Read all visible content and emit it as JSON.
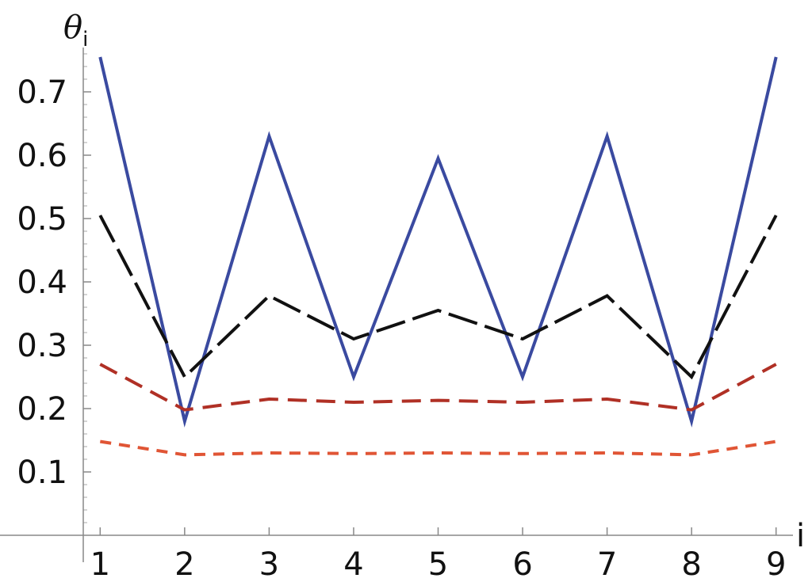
{
  "chart_data": {
    "type": "line",
    "x": [
      1,
      2,
      3,
      4,
      5,
      6,
      7,
      8,
      9
    ],
    "xlabel": "i",
    "ylabel": {
      "symbol": "θ",
      "subscript": "i"
    },
    "xlim": [
      0.8,
      9.2
    ],
    "ylim": [
      0,
      0.77
    ],
    "xticks": [
      1,
      2,
      3,
      4,
      5,
      6,
      7,
      8,
      9
    ],
    "yticks": [
      0.1,
      0.2,
      0.3,
      0.4,
      0.5,
      0.6,
      0.7
    ],
    "ytick_labels": [
      "0.1",
      "0.2",
      "0.3",
      "0.4",
      "0.5",
      "0.6",
      "0.7"
    ],
    "grid": false,
    "series": [
      {
        "values": [
          0.755,
          0.18,
          0.63,
          0.25,
          0.595,
          0.25,
          0.63,
          0.18,
          0.755
        ],
        "color": "#3a4aa0",
        "style": "solid"
      },
      {
        "values": [
          0.505,
          0.25,
          0.378,
          0.31,
          0.355,
          0.31,
          0.378,
          0.25,
          0.505
        ],
        "color": "#111111",
        "style": "long-dash"
      },
      {
        "values": [
          0.27,
          0.198,
          0.215,
          0.21,
          0.213,
          0.21,
          0.215,
          0.198,
          0.27
        ],
        "color": "#b03025",
        "style": "dash"
      },
      {
        "values": [
          0.148,
          0.127,
          0.13,
          0.129,
          0.13,
          0.129,
          0.13,
          0.127,
          0.148
        ],
        "color": "#e05535",
        "style": "short-dash"
      }
    ]
  }
}
